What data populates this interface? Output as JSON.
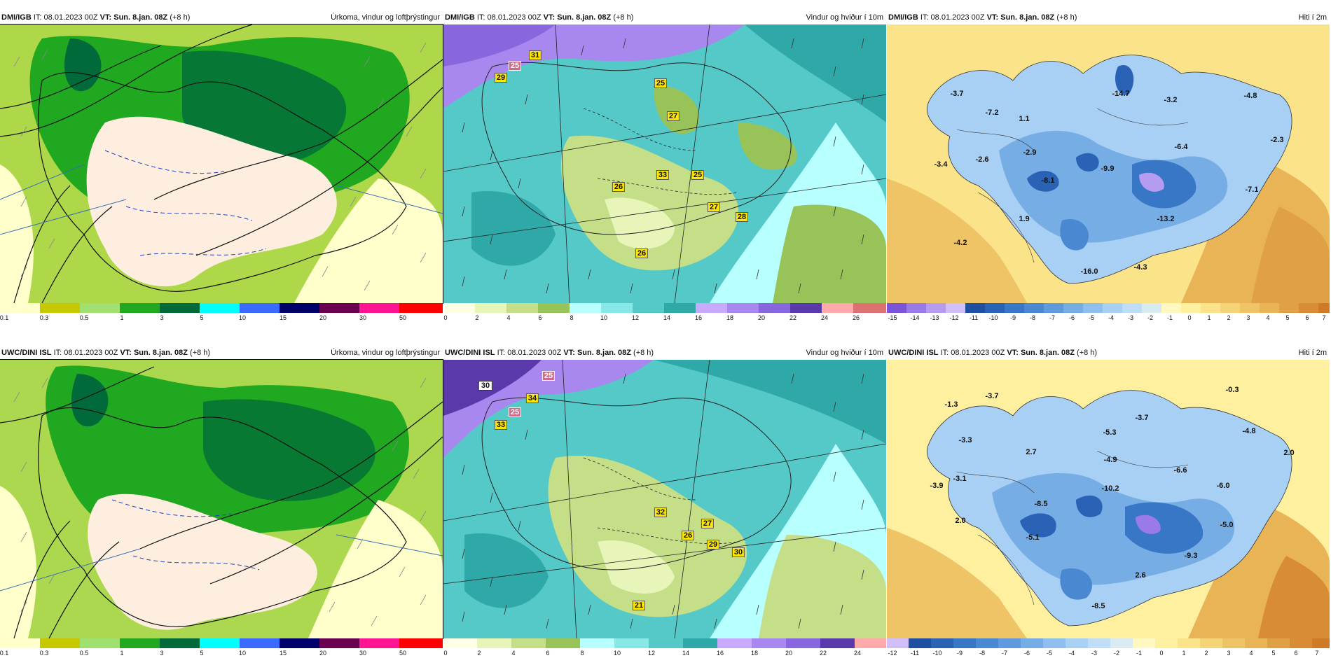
{
  "panels": [
    {
      "id": "p1",
      "source": "DMI/IGB",
      "it_label": "IT:",
      "it_value": "08.01.2023 00Z",
      "vt_label": "VT:",
      "vt_value": "Sun. 8.jan. 08Z",
      "offset": "(+8 h)",
      "title": "Úrkoma, vindur og loftþrýstingur",
      "scale": [
        {
          "label": "0.1",
          "color": "#ffffcc"
        },
        {
          "label": "0.3",
          "color": "#c8c800"
        },
        {
          "label": "0.5",
          "color": "#a0e070"
        },
        {
          "label": "1",
          "color": "#20a820"
        },
        {
          "label": "3",
          "color": "#006a3a"
        },
        {
          "label": "5",
          "color": "#00ffff"
        },
        {
          "label": "10",
          "color": "#3a6aff"
        },
        {
          "label": "15",
          "color": "#00006a"
        },
        {
          "label": "20",
          "color": "#6a0050"
        },
        {
          "label": "30",
          "color": "#ff1493"
        },
        {
          "label": "50",
          "color": "#ff0000"
        }
      ],
      "values": []
    },
    {
      "id": "p2",
      "source": "DMI/IGB",
      "it_label": "IT:",
      "it_value": "08.01.2023 00Z",
      "vt_label": "VT:",
      "vt_value": "Sun. 8.jan. 08Z",
      "offset": "(+8 h)",
      "title": "Vindur og hviður í 10m",
      "scale": [
        {
          "label": "0",
          "color": "#ffffe6"
        },
        {
          "label": "2",
          "color": "#e8f5b8"
        },
        {
          "label": "4",
          "color": "#c4df88"
        },
        {
          "label": "6",
          "color": "#98c358"
        },
        {
          "label": "8",
          "color": "#b8ffff"
        },
        {
          "label": "10",
          "color": "#88e8e8"
        },
        {
          "label": "12",
          "color": "#55c8c8"
        },
        {
          "label": "14",
          "color": "#2fa8a8"
        },
        {
          "label": "16",
          "color": "#c8aaff"
        },
        {
          "label": "18",
          "color": "#a888ee"
        },
        {
          "label": "20",
          "color": "#8866dd"
        },
        {
          "label": "22",
          "color": "#5a3aaa"
        },
        {
          "label": "24",
          "color": "#ffaaaa"
        },
        {
          "label": "26",
          "color": "#dd7070"
        }
      ],
      "values": [
        {
          "t": "31",
          "kind": "y"
        },
        {
          "t": "25",
          "kind": "p"
        },
        {
          "t": "29",
          "kind": "y"
        },
        {
          "t": "25",
          "kind": "y"
        },
        {
          "t": "27",
          "kind": "y"
        },
        {
          "t": "26",
          "kind": "y"
        },
        {
          "t": "33",
          "kind": "y"
        },
        {
          "t": "25",
          "kind": "y"
        },
        {
          "t": "27",
          "kind": "y"
        },
        {
          "t": "28",
          "kind": "y"
        },
        {
          "t": "26",
          "kind": "y"
        }
      ]
    },
    {
      "id": "p3",
      "source": "DMI/IGB",
      "it_label": "IT:",
      "it_value": "08.01.2023 00Z",
      "vt_label": "VT:",
      "vt_value": "Sun. 8.jan. 08Z",
      "offset": "(+8 h)",
      "title": "Hiti í 2m",
      "scale": [
        {
          "label": "-15",
          "color": "#7a55d8"
        },
        {
          "label": "-14",
          "color": "#9a7ae6"
        },
        {
          "label": "-13",
          "color": "#b59cf0"
        },
        {
          "label": "-12",
          "color": "#d0bff8"
        },
        {
          "label": "-11",
          "color": "#1e4fa0"
        },
        {
          "label": "-10",
          "color": "#2a62b5"
        },
        {
          "label": "-9",
          "color": "#3876c6"
        },
        {
          "label": "-8",
          "color": "#4a88d2"
        },
        {
          "label": "-7",
          "color": "#5f9bdc"
        },
        {
          "label": "-6",
          "color": "#76ade5"
        },
        {
          "label": "-5",
          "color": "#8fbfee"
        },
        {
          "label": "-4",
          "color": "#a8cff4"
        },
        {
          "label": "-3",
          "color": "#c0ddf8"
        },
        {
          "label": "-2",
          "color": "#d8ebf0"
        },
        {
          "label": "-1",
          "color": "#fff8c0"
        },
        {
          "label": "0",
          "color": "#fff0a0"
        },
        {
          "label": "1",
          "color": "#fbe38a"
        },
        {
          "label": "2",
          "color": "#f5d478"
        },
        {
          "label": "3",
          "color": "#efc466"
        },
        {
          "label": "4",
          "color": "#e8b455"
        },
        {
          "label": "5",
          "color": "#e0a044"
        },
        {
          "label": "6",
          "color": "#d88c34"
        },
        {
          "label": "7",
          "color": "#cf7a26"
        }
      ],
      "values": [
        {
          "t": "-3.7"
        },
        {
          "t": "-14.7"
        },
        {
          "t": "-3.2"
        },
        {
          "t": "-4.8"
        },
        {
          "t": "-7.2"
        },
        {
          "t": "1.1"
        },
        {
          "t": "-6.4"
        },
        {
          "t": "-2.3"
        },
        {
          "t": "-2.9"
        },
        {
          "t": "-2.6"
        },
        {
          "t": "-3.4"
        },
        {
          "t": "-8.1"
        },
        {
          "t": "-9.9"
        },
        {
          "t": "-7.1"
        },
        {
          "t": "1.9"
        },
        {
          "t": "-13.2"
        },
        {
          "t": "-4.2"
        },
        {
          "t": "-16.0"
        },
        {
          "t": "-4.3"
        }
      ]
    },
    {
      "id": "p4",
      "source": "UWC/DINI ISL",
      "it_label": "IT:",
      "it_value": "08.01.2023 00Z",
      "vt_label": "VT:",
      "vt_value": "Sun. 8.jan. 08Z",
      "offset": "(+8 h)",
      "title": "Úrkoma, vindur og loftþrýstingur",
      "scale": [
        {
          "label": "0.1",
          "color": "#ffffcc"
        },
        {
          "label": "0.3",
          "color": "#c8c800"
        },
        {
          "label": "0.5",
          "color": "#a0e070"
        },
        {
          "label": "1",
          "color": "#20a820"
        },
        {
          "label": "3",
          "color": "#006a3a"
        },
        {
          "label": "5",
          "color": "#00ffff"
        },
        {
          "label": "10",
          "color": "#3a6aff"
        },
        {
          "label": "15",
          "color": "#00006a"
        },
        {
          "label": "20",
          "color": "#6a0050"
        },
        {
          "label": "30",
          "color": "#ff1493"
        },
        {
          "label": "50",
          "color": "#ff0000"
        }
      ],
      "values": []
    },
    {
      "id": "p5",
      "source": "UWC/DINI ISL",
      "it_label": "IT:",
      "it_value": "08.01.2023 00Z",
      "vt_label": "VT:",
      "vt_value": "Sun. 8.jan. 08Z",
      "offset": "(+8 h)",
      "title": "Vindur og hviður í 10m",
      "scale": [
        {
          "label": "0",
          "color": "#ffffe6"
        },
        {
          "label": "2",
          "color": "#e8f5b8"
        },
        {
          "label": "4",
          "color": "#c4df88"
        },
        {
          "label": "6",
          "color": "#98c358"
        },
        {
          "label": "8",
          "color": "#b8ffff"
        },
        {
          "label": "10",
          "color": "#88e8e8"
        },
        {
          "label": "12",
          "color": "#55c8c8"
        },
        {
          "label": "14",
          "color": "#2fa8a8"
        },
        {
          "label": "16",
          "color": "#c8aaff"
        },
        {
          "label": "18",
          "color": "#a888ee"
        },
        {
          "label": "20",
          "color": "#8866dd"
        },
        {
          "label": "22",
          "color": "#5a3aaa"
        },
        {
          "label": "24",
          "color": "#ffaaaa"
        }
      ],
      "values": [
        {
          "t": "30",
          "kind": "w"
        },
        {
          "t": "25",
          "kind": "p"
        },
        {
          "t": "34",
          "kind": "y"
        },
        {
          "t": "25",
          "kind": "p"
        },
        {
          "t": "33",
          "kind": "y"
        },
        {
          "t": "32",
          "kind": "y"
        },
        {
          "t": "27",
          "kind": "y"
        },
        {
          "t": "26",
          "kind": "y"
        },
        {
          "t": "29",
          "kind": "y"
        },
        {
          "t": "30",
          "kind": "y"
        },
        {
          "t": "21",
          "kind": "y"
        }
      ]
    },
    {
      "id": "p6",
      "source": "UWC/DINI ISL",
      "it_label": "IT:",
      "it_value": "08.01.2023 00Z",
      "vt_label": "VT:",
      "vt_value": "Sun. 8.jan. 08Z",
      "offset": "(+8 h)",
      "title": "Hiti í 2m",
      "scale": [
        {
          "label": "-12",
          "color": "#d0bff8"
        },
        {
          "label": "-11",
          "color": "#1e4fa0"
        },
        {
          "label": "-10",
          "color": "#2a62b5"
        },
        {
          "label": "-9",
          "color": "#3876c6"
        },
        {
          "label": "-8",
          "color": "#4a88d2"
        },
        {
          "label": "-7",
          "color": "#5f9bdc"
        },
        {
          "label": "-6",
          "color": "#76ade5"
        },
        {
          "label": "-5",
          "color": "#8fbfee"
        },
        {
          "label": "-4",
          "color": "#a8cff4"
        },
        {
          "label": "-3",
          "color": "#c0ddf8"
        },
        {
          "label": "-2",
          "color": "#d8ebf0"
        },
        {
          "label": "-1",
          "color": "#fff8c0"
        },
        {
          "label": "0",
          "color": "#fff0a0"
        },
        {
          "label": "1",
          "color": "#fbe38a"
        },
        {
          "label": "2",
          "color": "#f5d478"
        },
        {
          "label": "3",
          "color": "#efc466"
        },
        {
          "label": "4",
          "color": "#e8b455"
        },
        {
          "label": "5",
          "color": "#e0a044"
        },
        {
          "label": "6",
          "color": "#d88c34"
        },
        {
          "label": "7",
          "color": "#cf7a26"
        }
      ],
      "values": [
        {
          "t": "-1.3"
        },
        {
          "t": "-3.7"
        },
        {
          "t": "-0.3"
        },
        {
          "t": "-3.7"
        },
        {
          "t": "-3.3"
        },
        {
          "t": "-5.3"
        },
        {
          "t": "-4.8"
        },
        {
          "t": "2.7"
        },
        {
          "t": "-4.9"
        },
        {
          "t": "2.0"
        },
        {
          "t": "-6.6"
        },
        {
          "t": "-3.9"
        },
        {
          "t": "-3.1"
        },
        {
          "t": "-10.2"
        },
        {
          "t": "-6.0"
        },
        {
          "t": "-8.5"
        },
        {
          "t": "2.0"
        },
        {
          "t": "-5.1"
        },
        {
          "t": "-5.0"
        },
        {
          "t": "-9.3"
        },
        {
          "t": "2.6"
        },
        {
          "t": "-8.5"
        }
      ]
    }
  ]
}
